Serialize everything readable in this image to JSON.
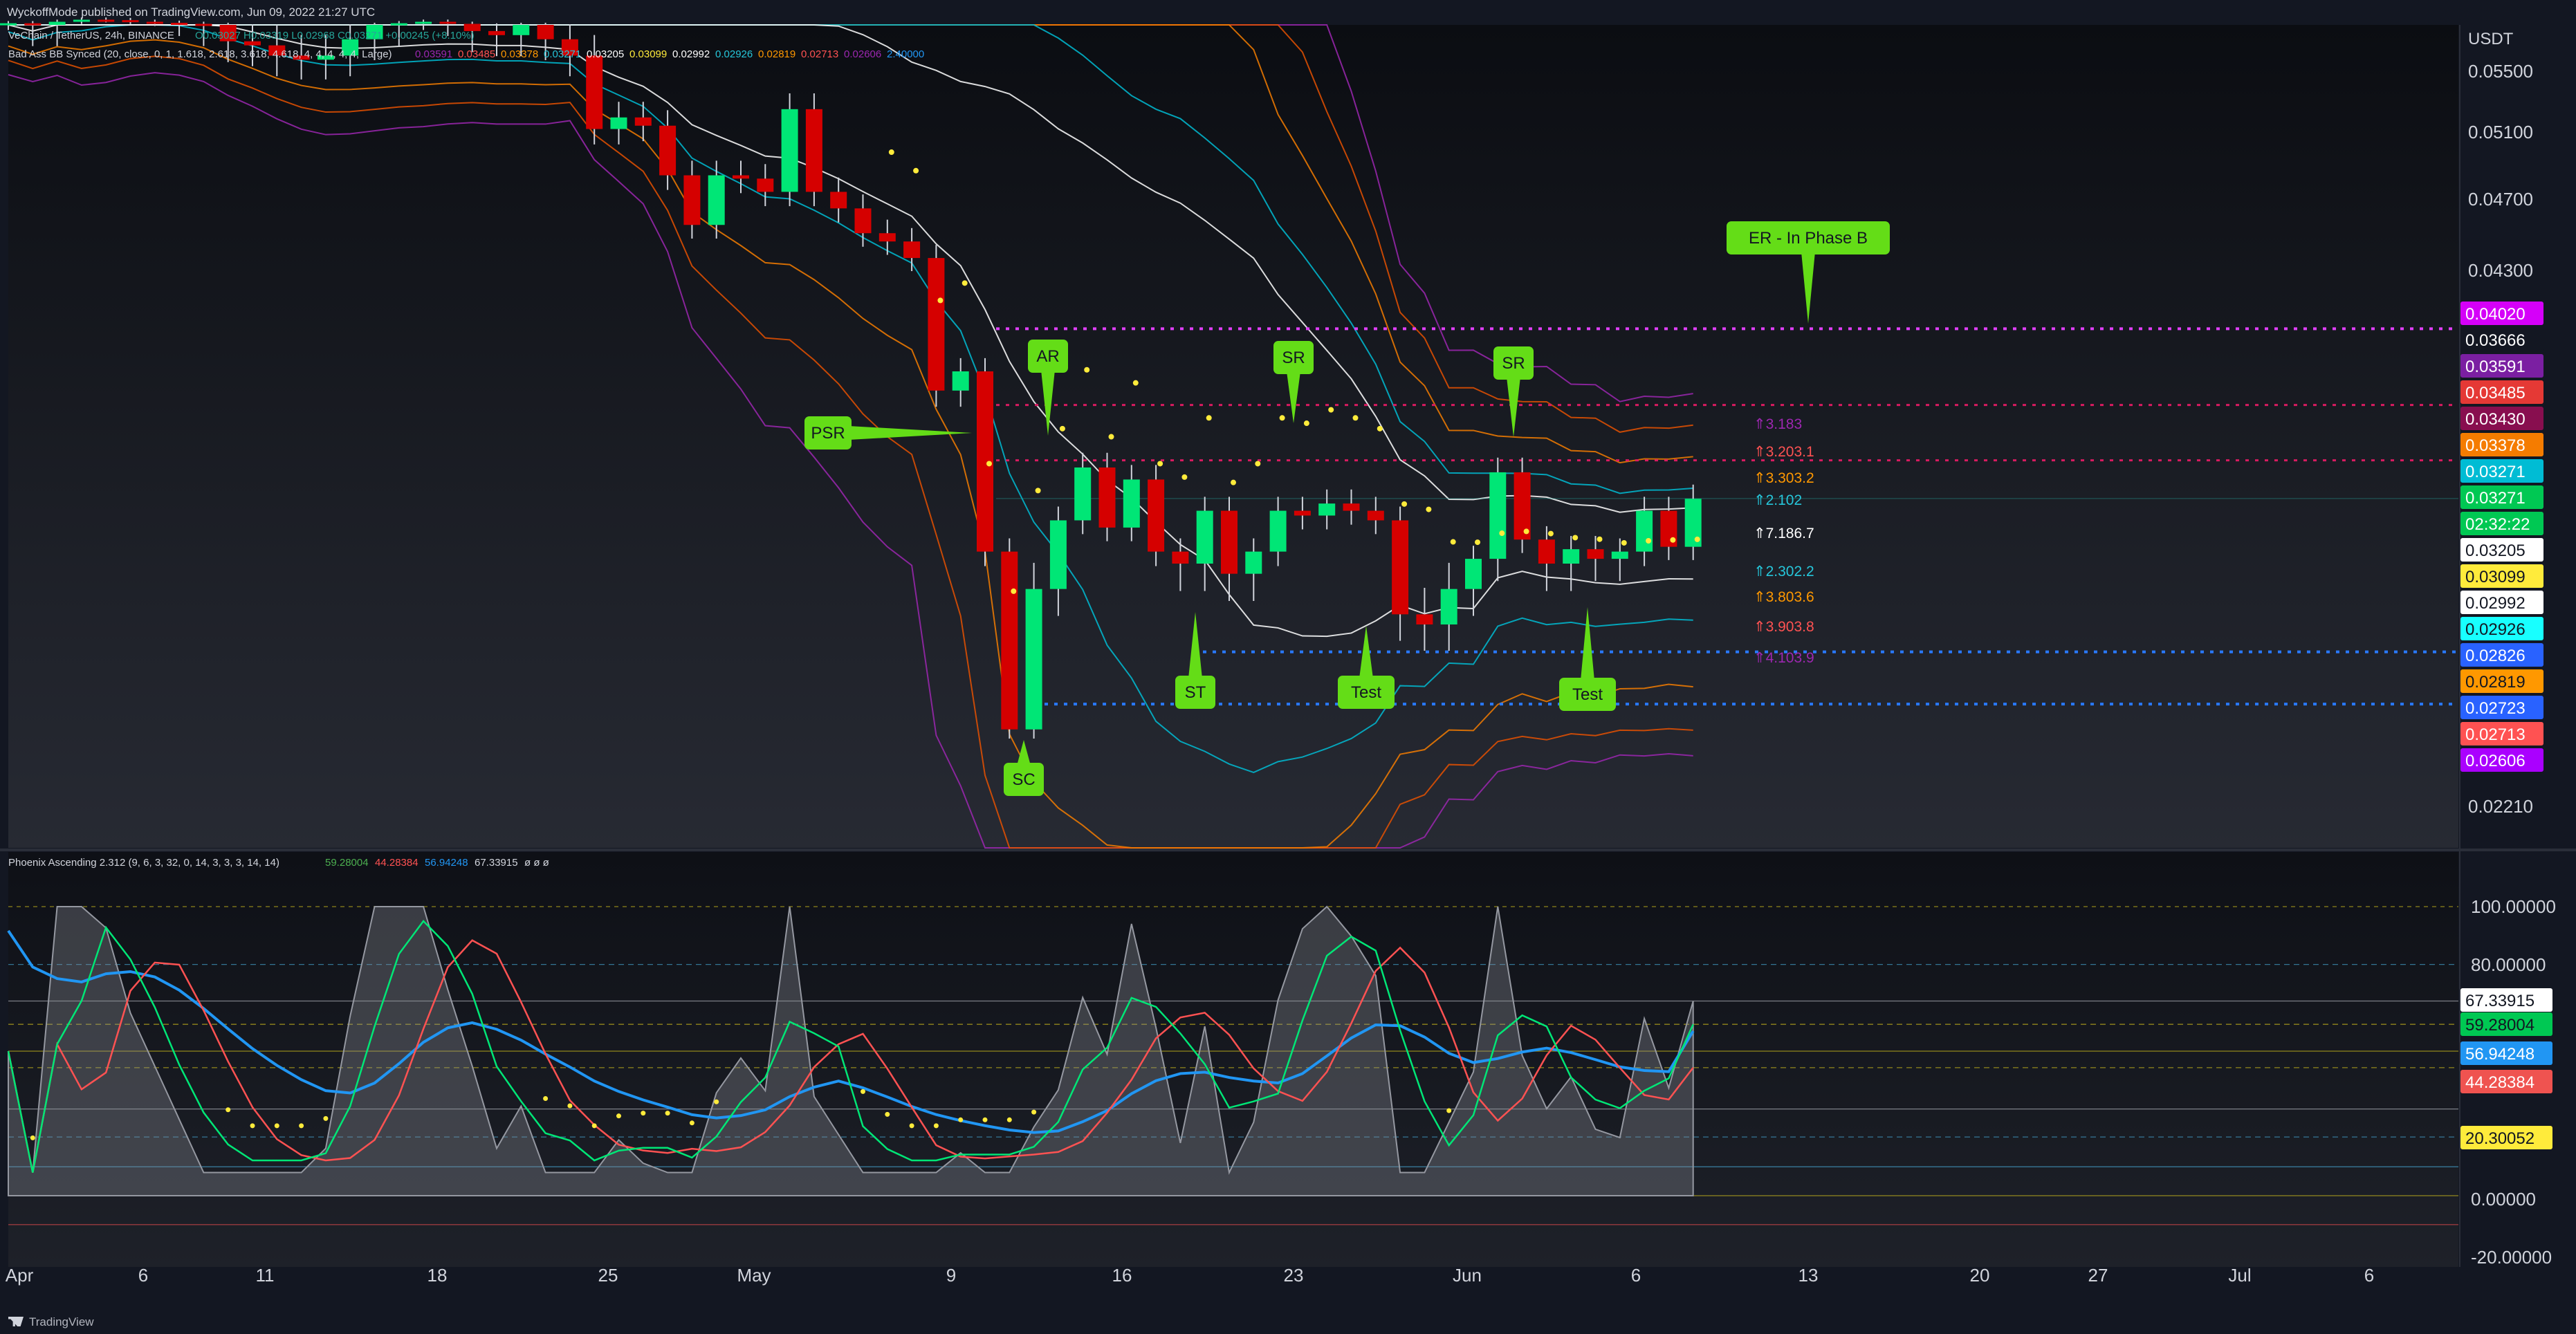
{
  "header": {
    "publisher": "WyckoffMode published on TradingView.com, Jun 09, 2022 21:27 UTC",
    "symbol_line": "VeChain / TetherUS, 24h, BINANCE",
    "ohlc": "O0.03027 H0.03319 L0.02968 C0.03271 +0.00245 (+8.10%)",
    "bb_legend": "Bad Ass BB Synced (20, close, 0, 1, 1.618, 2.618, 3.618, 4.618, 4, 4, 4, 4, 4, Large)",
    "bb_values": [
      {
        "text": "0.03591",
        "color": "#9c27b0"
      },
      {
        "text": "0.03485",
        "color": "#ff5252"
      },
      {
        "text": "0.03378",
        "color": "#ff9800"
      },
      {
        "text": "0.03271",
        "color": "#26c6da"
      },
      {
        "text": "0.03205",
        "color": "#ffffff"
      },
      {
        "text": "0.03099",
        "color": "#ffeb3b"
      },
      {
        "text": "0.02992",
        "color": "#ffffff"
      },
      {
        "text": "0.02926",
        "color": "#26c6da"
      },
      {
        "text": "0.02819",
        "color": "#ff9800"
      },
      {
        "text": "0.02713",
        "color": "#ff5252"
      },
      {
        "text": "0.02606",
        "color": "#9c27b0"
      },
      {
        "text": "2.40000",
        "color": "#2196f3"
      }
    ],
    "phoenix_legend": "Phoenix Ascending 2.312 (9, 6, 3, 32, 0, 14, 3, 3, 3, 14, 14)",
    "phoenix_values": [
      {
        "text": "59.28004",
        "color": "#4caf50"
      },
      {
        "text": "44.28384",
        "color": "#ff5252"
      },
      {
        "text": "56.94248",
        "color": "#2196f3"
      },
      {
        "text": "67.33915",
        "color": "#d1d4dc"
      },
      {
        "text": "ø ø ø",
        "color": "#d1d4dc"
      }
    ]
  },
  "footer": {
    "brand": "TradingView"
  },
  "price_axis": {
    "currency": "USDT",
    "ticks": [
      "0.05500",
      "0.05100",
      "0.04700",
      "0.04300",
      "0.02210"
    ],
    "tags": [
      {
        "text": "0.04020",
        "bg": "#d500f9",
        "fg": "#ffffff"
      },
      {
        "text": "0.03666",
        "bg": "#131722",
        "fg": "#ffffff"
      },
      {
        "text": "0.03591",
        "bg": "#7b1fa2",
        "fg": "#ffffff"
      },
      {
        "text": "0.03485",
        "bg": "#e53935",
        "fg": "#ffffff"
      },
      {
        "text": "0.03430",
        "bg": "#880e4f",
        "fg": "#ffffff"
      },
      {
        "text": "0.03378",
        "bg": "#f57c00",
        "fg": "#ffffff"
      },
      {
        "text": "0.03271",
        "bg": "#00bcd4",
        "fg": "#ffffff"
      },
      {
        "text": "0.03271",
        "bg": "#00c853",
        "fg": "#ffffff"
      },
      {
        "text": "02:32:22",
        "bg": "#00c853",
        "fg": "#ffffff"
      },
      {
        "text": "0.03205",
        "bg": "#ffffff",
        "fg": "#131722"
      },
      {
        "text": "0.03099",
        "bg": "#ffeb3b",
        "fg": "#131722"
      },
      {
        "text": "0.02992",
        "bg": "#ffffff",
        "fg": "#131722"
      },
      {
        "text": "0.02926",
        "bg": "#18ffff",
        "fg": "#131722"
      },
      {
        "text": "0.02826",
        "bg": "#2962ff",
        "fg": "#ffffff"
      },
      {
        "text": "0.02819",
        "bg": "#ff9800",
        "fg": "#131722"
      },
      {
        "text": "0.02723",
        "bg": "#2962ff",
        "fg": "#ffffff"
      },
      {
        "text": "0.02713",
        "bg": "#ff5252",
        "fg": "#ffffff"
      },
      {
        "text": "0.02606",
        "bg": "#aa00ff",
        "fg": "#ffffff"
      }
    ]
  },
  "osc_axis": {
    "ticks": [
      "100.00000",
      "80.00000",
      "0.00000",
      "-20.00000"
    ],
    "tags": [
      {
        "text": "67.33915",
        "bg": "#ffffff",
        "fg": "#131722"
      },
      {
        "text": "59.28004",
        "bg": "#00c853",
        "fg": "#131722"
      },
      {
        "text": "56.94248",
        "bg": "#2196f3",
        "fg": "#ffffff"
      },
      {
        "text": "44.28384",
        "bg": "#ef5350",
        "fg": "#ffffff"
      },
      {
        "text": "20.30052",
        "bg": "#ffeb3b",
        "fg": "#131722"
      }
    ]
  },
  "time_axis": [
    "Apr",
    "6",
    "11",
    "18",
    "25",
    "May",
    "9",
    "16",
    "23",
    "Jun",
    "6",
    "13",
    "20",
    "27",
    "Jul",
    "6"
  ],
  "annotations": [
    "SC",
    "PSR",
    "AR",
    "ST",
    "SR",
    "Test",
    "SR",
    "Test",
    "ER - In Phase B"
  ],
  "level_labels": [
    {
      "text": "⇑3.183",
      "color": "#9c27b0"
    },
    {
      "text": "⇑3.203.1",
      "color": "#ff5252"
    },
    {
      "text": "⇑3.303.2",
      "color": "#ff9800"
    },
    {
      "text": "⇑2.102",
      "color": "#26c6da"
    },
    {
      "text": "⇑7.186.7",
      "color": "#ffffff"
    },
    {
      "text": "⇑2.302.2",
      "color": "#26c6da"
    },
    {
      "text": "⇑3.803.6",
      "color": "#ff9800"
    },
    {
      "text": "⇑3.903.8",
      "color": "#ff5252"
    },
    {
      "text": "⇑4.103.9",
      "color": "#9c27b0"
    }
  ],
  "chart_data": {
    "type": "candlestick",
    "title": "VeChain / TetherUS, 24h, BINANCE",
    "ylabel": "USDT",
    "ylim": [
      0.0205,
      0.0575
    ],
    "date_range": [
      "2022-04-01",
      "2022-06-09"
    ],
    "closes": [
      0.0583,
      0.0575,
      0.059,
      0.06,
      0.0598,
      0.059,
      0.0585,
      0.058,
      0.0575,
      0.0567,
      0.0565,
      0.056,
      0.0558,
      0.056,
      0.0568,
      0.0575,
      0.0583,
      0.059,
      0.058,
      0.0572,
      0.057,
      0.0575,
      0.0568,
      0.056,
      0.0518,
      0.0525,
      0.052,
      0.049,
      0.046,
      0.049,
      0.0488,
      0.048,
      0.053,
      0.048,
      0.047,
      0.0455,
      0.045,
      0.044,
      0.0372,
      0.038,
      0.0305,
      0.0263,
      0.0295,
      0.0318,
      0.034,
      0.0315,
      0.0335,
      0.0305,
      0.03,
      0.0322,
      0.0298,
      0.0305,
      0.0322,
      0.032,
      0.0325,
      0.0322,
      0.0318,
      0.029,
      0.0288,
      0.0295,
      0.0302,
      0.0338,
      0.031,
      0.03,
      0.0306,
      0.0302,
      0.0305,
      0.0322,
      0.0307,
      0.0327
    ],
    "bb_basis_last": 0.03099,
    "levels": {
      "creek": 0.0402,
      "ar_high": 0.0366,
      "ice": 0.02826,
      "sc_low": 0.02723
    },
    "oscillator": {
      "name": "Phoenix Ascending 2.312",
      "ylim": [
        -22,
        108
      ],
      "green_last": 59.28004,
      "red_last": 44.28384,
      "blue_last": 56.94248,
      "gray_last": 67.33915,
      "level": 20.30052
    }
  }
}
